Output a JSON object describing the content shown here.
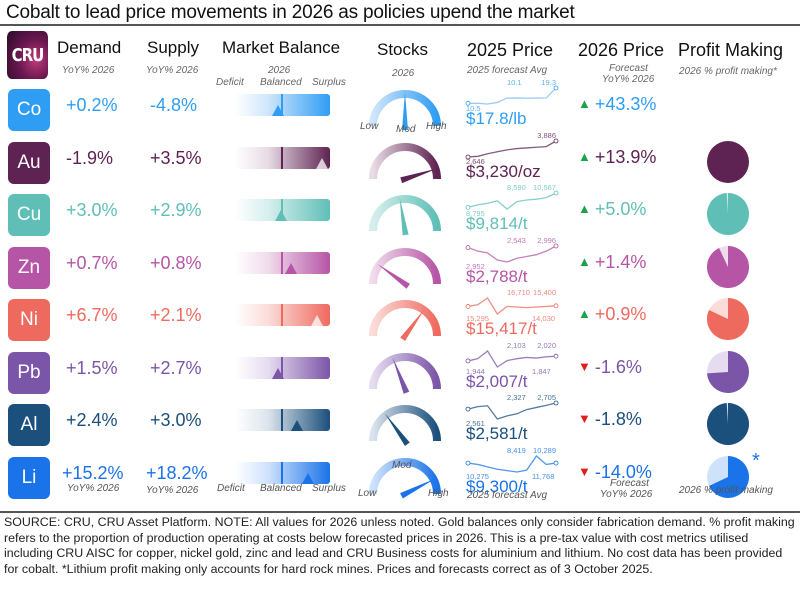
{
  "title": "Cobalt to lead price movements in 2026 as policies upend the market",
  "logo": "CRU",
  "headers": {
    "demand": "Demand",
    "supply": "Supply",
    "balance": "Market Balance",
    "stocks": "Stocks",
    "price2025": "2025 Price",
    "price2026": "2026 Price",
    "profit": "Profit Making"
  },
  "subheaders": {
    "demand": "YoY% 2026",
    "supply": "YoY% 2026",
    "balance_year": "2026",
    "deficit": "Deficit",
    "balanced": "Balanced",
    "surplus": "Surplus",
    "stocks_year": "2026",
    "low": "Low",
    "mod": "Mod",
    "high": "High",
    "price2025": "2025 forecast Avg",
    "price2026_a": "Forecast",
    "price2026_b": "YoY% 2026",
    "profit": "2026 % profit making*",
    "profit_bottom": "2026 % profit making"
  },
  "metals": [
    {
      "symbol": "Co",
      "color": "#2f9df4",
      "light": "#cfe6fb",
      "demand": "+0.2%",
      "supply": "-4.8%",
      "balance": -0.1,
      "stocks": 0.5,
      "spark": {
        "points": [
          10.5,
          10.5,
          10.1,
          11,
          13.5,
          13.6,
          13.4,
          13.5,
          13.6,
          19.3
        ],
        "labels": [
          "10.5",
          "10.1",
          "19.3"
        ]
      },
      "price": "$17.8/lb",
      "change": "+43.3%",
      "dir": "up",
      "profit": null
    },
    {
      "symbol": "Au",
      "color": "#5e2352",
      "light": "#e8dbe4",
      "demand": "-1.9%",
      "supply": "+3.5%",
      "balance": 0.9,
      "stocks": 0.9,
      "spark": {
        "points": [
          2646,
          2700,
          2900,
          3050,
          3200,
          3300,
          3350,
          3400,
          3450,
          3886
        ],
        "labels": [
          "2,646",
          "3,886"
        ]
      },
      "price": "$3,230/oz",
      "change": "+13.9%",
      "dir": "up",
      "profit": 1.0
    },
    {
      "symbol": "Cu",
      "color": "#5fbfb7",
      "light": "#d6efed",
      "demand": "+3.0%",
      "supply": "+2.9%",
      "balance": -0.03,
      "stocks": 0.45,
      "spark": {
        "points": [
          8795,
          9100,
          9300,
          9600,
          8590,
          9500,
          9700,
          9800,
          10000,
          10567
        ],
        "labels": [
          "8,795",
          "8,590",
          "10,567"
        ]
      },
      "price": "$9,814/t",
      "change": "+5.0%",
      "dir": "up",
      "profit": 0.99
    },
    {
      "symbol": "Zn",
      "color": "#b655a6",
      "light": "#f0dcec",
      "demand": "+0.7%",
      "supply": "+0.8%",
      "balance": 0.2,
      "stocks": 0.2,
      "spark": {
        "points": [
          2952,
          2850,
          2800,
          2600,
          2543,
          2650,
          2700,
          2750,
          2850,
          2996
        ],
        "labels": [
          "2,952",
          "2,543",
          "2,996"
        ]
      },
      "price": "$2,788/t",
      "change": "+1.4%",
      "dir": "up",
      "profit": 0.93
    },
    {
      "symbol": "Ni",
      "color": "#ee6a5f",
      "light": "#fbdcd8",
      "demand": "+6.7%",
      "supply": "+2.1%",
      "balance": 0.8,
      "stocks": 0.7,
      "spark": {
        "points": [
          15295,
          15600,
          16710,
          14030,
          15300,
          15200,
          15100,
          15200,
          15300,
          15400
        ],
        "labels": [
          "15,295",
          "16,710",
          "14,030",
          "15,400"
        ]
      },
      "price": "$15,417/t",
      "change": "+0.9%",
      "dir": "up",
      "profit": 0.82
    },
    {
      "symbol": "Pb",
      "color": "#7b55a8",
      "light": "#e5dcef",
      "demand": "+1.5%",
      "supply": "+2.7%",
      "balance": -0.1,
      "stocks": 0.38,
      "spark": {
        "points": [
          1944,
          1980,
          2103,
          1847,
          1950,
          1980,
          2000,
          1990,
          2010,
          2020
        ],
        "labels": [
          "1,944",
          "2,103",
          "1,847",
          "2,020"
        ]
      },
      "price": "$2,007/t",
      "change": "-1.6%",
      "dir": "down",
      "profit": 0.74
    },
    {
      "symbol": "Al",
      "color": "#1b4f7c",
      "light": "#dbe4ec",
      "demand": "+2.4%",
      "supply": "+3.0%",
      "balance": 0.35,
      "stocks": 0.3,
      "spark": {
        "points": [
          2561,
          2620,
          2640,
          2327,
          2400,
          2450,
          2550,
          2600,
          2650,
          2705
        ],
        "labels": [
          "2,561",
          "2,327",
          "2,705"
        ]
      },
      "price": "$2,581/t",
      "change": "-1.8%",
      "dir": "down",
      "profit": 0.99
    },
    {
      "symbol": "Li",
      "color": "#1a73e8",
      "light": "#cfe2fc",
      "demand": "+15.2%",
      "supply": "+18.2%",
      "balance": 0.6,
      "stocks": 0.85,
      "spark": {
        "points": [
          10275,
          10000,
          9500,
          9000,
          8700,
          8419,
          8800,
          11768,
          10000,
          10289
        ],
        "labels": [
          "10,275",
          "8,419",
          "11,768",
          "10,289"
        ]
      },
      "price": "$9,300/t",
      "change": "-14.0%",
      "dir": "down",
      "profit": 0.68
    }
  ],
  "colors": {
    "up": "#1aa34a",
    "down": "#e31b1b"
  },
  "footnote": "SOURCE: CRU, CRU Asset Platform. NOTE: All values for 2026 unless noted. Gold balances only consider fabrication demand. % profit making refers to the proportion of production operating at costs below forecasted prices in 2026. This is a pre-tax value with cost metrics utilised including CRU AISC for copper, nickel gold, zinc and lead and CRU Business costs for aluminium and lithium. No cost data has been provided for cobalt. *Lithium profit making only accounts for hard rock mines. Prices and forecasts correct as of 3 October 2025.",
  "asterisk": "*"
}
